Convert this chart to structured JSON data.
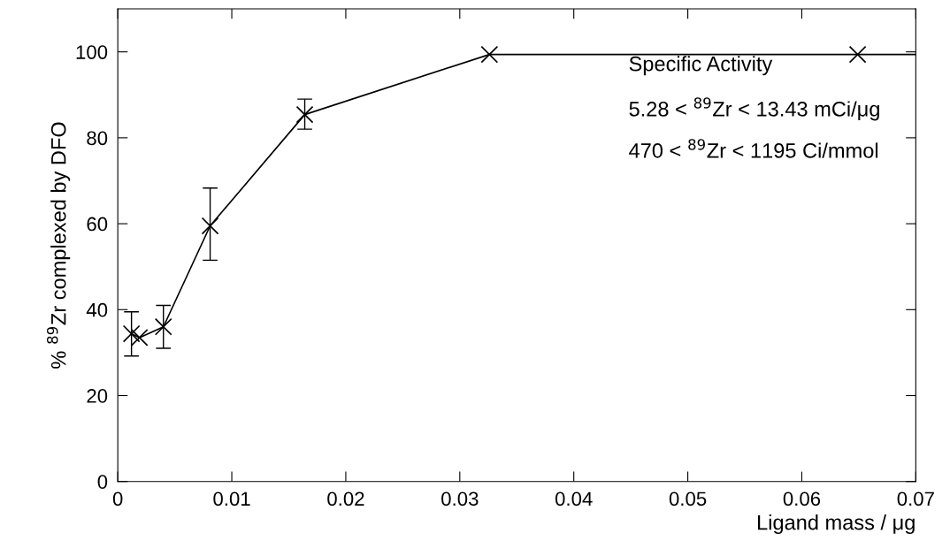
{
  "chart_data": {
    "type": "line",
    "xlabel": "Ligand mass / μg",
    "ylabel": "% $^{89}$Zr complexed by DFO",
    "series": [
      {
        "color": "#000000",
        "marker": "cross",
        "x": [
          0.0012,
          0.0019,
          0.004,
          0.0081,
          0.0164,
          0.0326,
          0.0649
        ],
        "values": [
          34.4,
          33.5,
          36,
          59.5,
          85.4,
          99.4,
          99.4
        ],
        "errors": [
          [
            29.2,
            39.5
          ],
          null,
          [
            31,
            41
          ],
          [
            51.5,
            68.3
          ],
          [
            82,
            89
          ],
          null,
          null
        ]
      },
      {
        "color": "#000000",
        "marker": "none",
        "x": [
          0.0649,
          0.07
        ],
        "values": [
          99.4,
          99.4
        ]
      }
    ],
    "xlim": [
      0,
      0.07
    ],
    "xticks": [
      0,
      0.01,
      0.02,
      0.03,
      0.04,
      0.05,
      0.06,
      0.07
    ],
    "ylim": [
      0,
      110
    ],
    "yticks": [
      0,
      20,
      40,
      60,
      80,
      100
    ],
    "grid": false,
    "legend": false,
    "annotations": [
      "Specific Activity",
      "5.28 < $^{89}$Zr < 13.43 mCi/μg",
      "470 < $^{89}$Zr < 1195 Ci/mmol"
    ]
  }
}
